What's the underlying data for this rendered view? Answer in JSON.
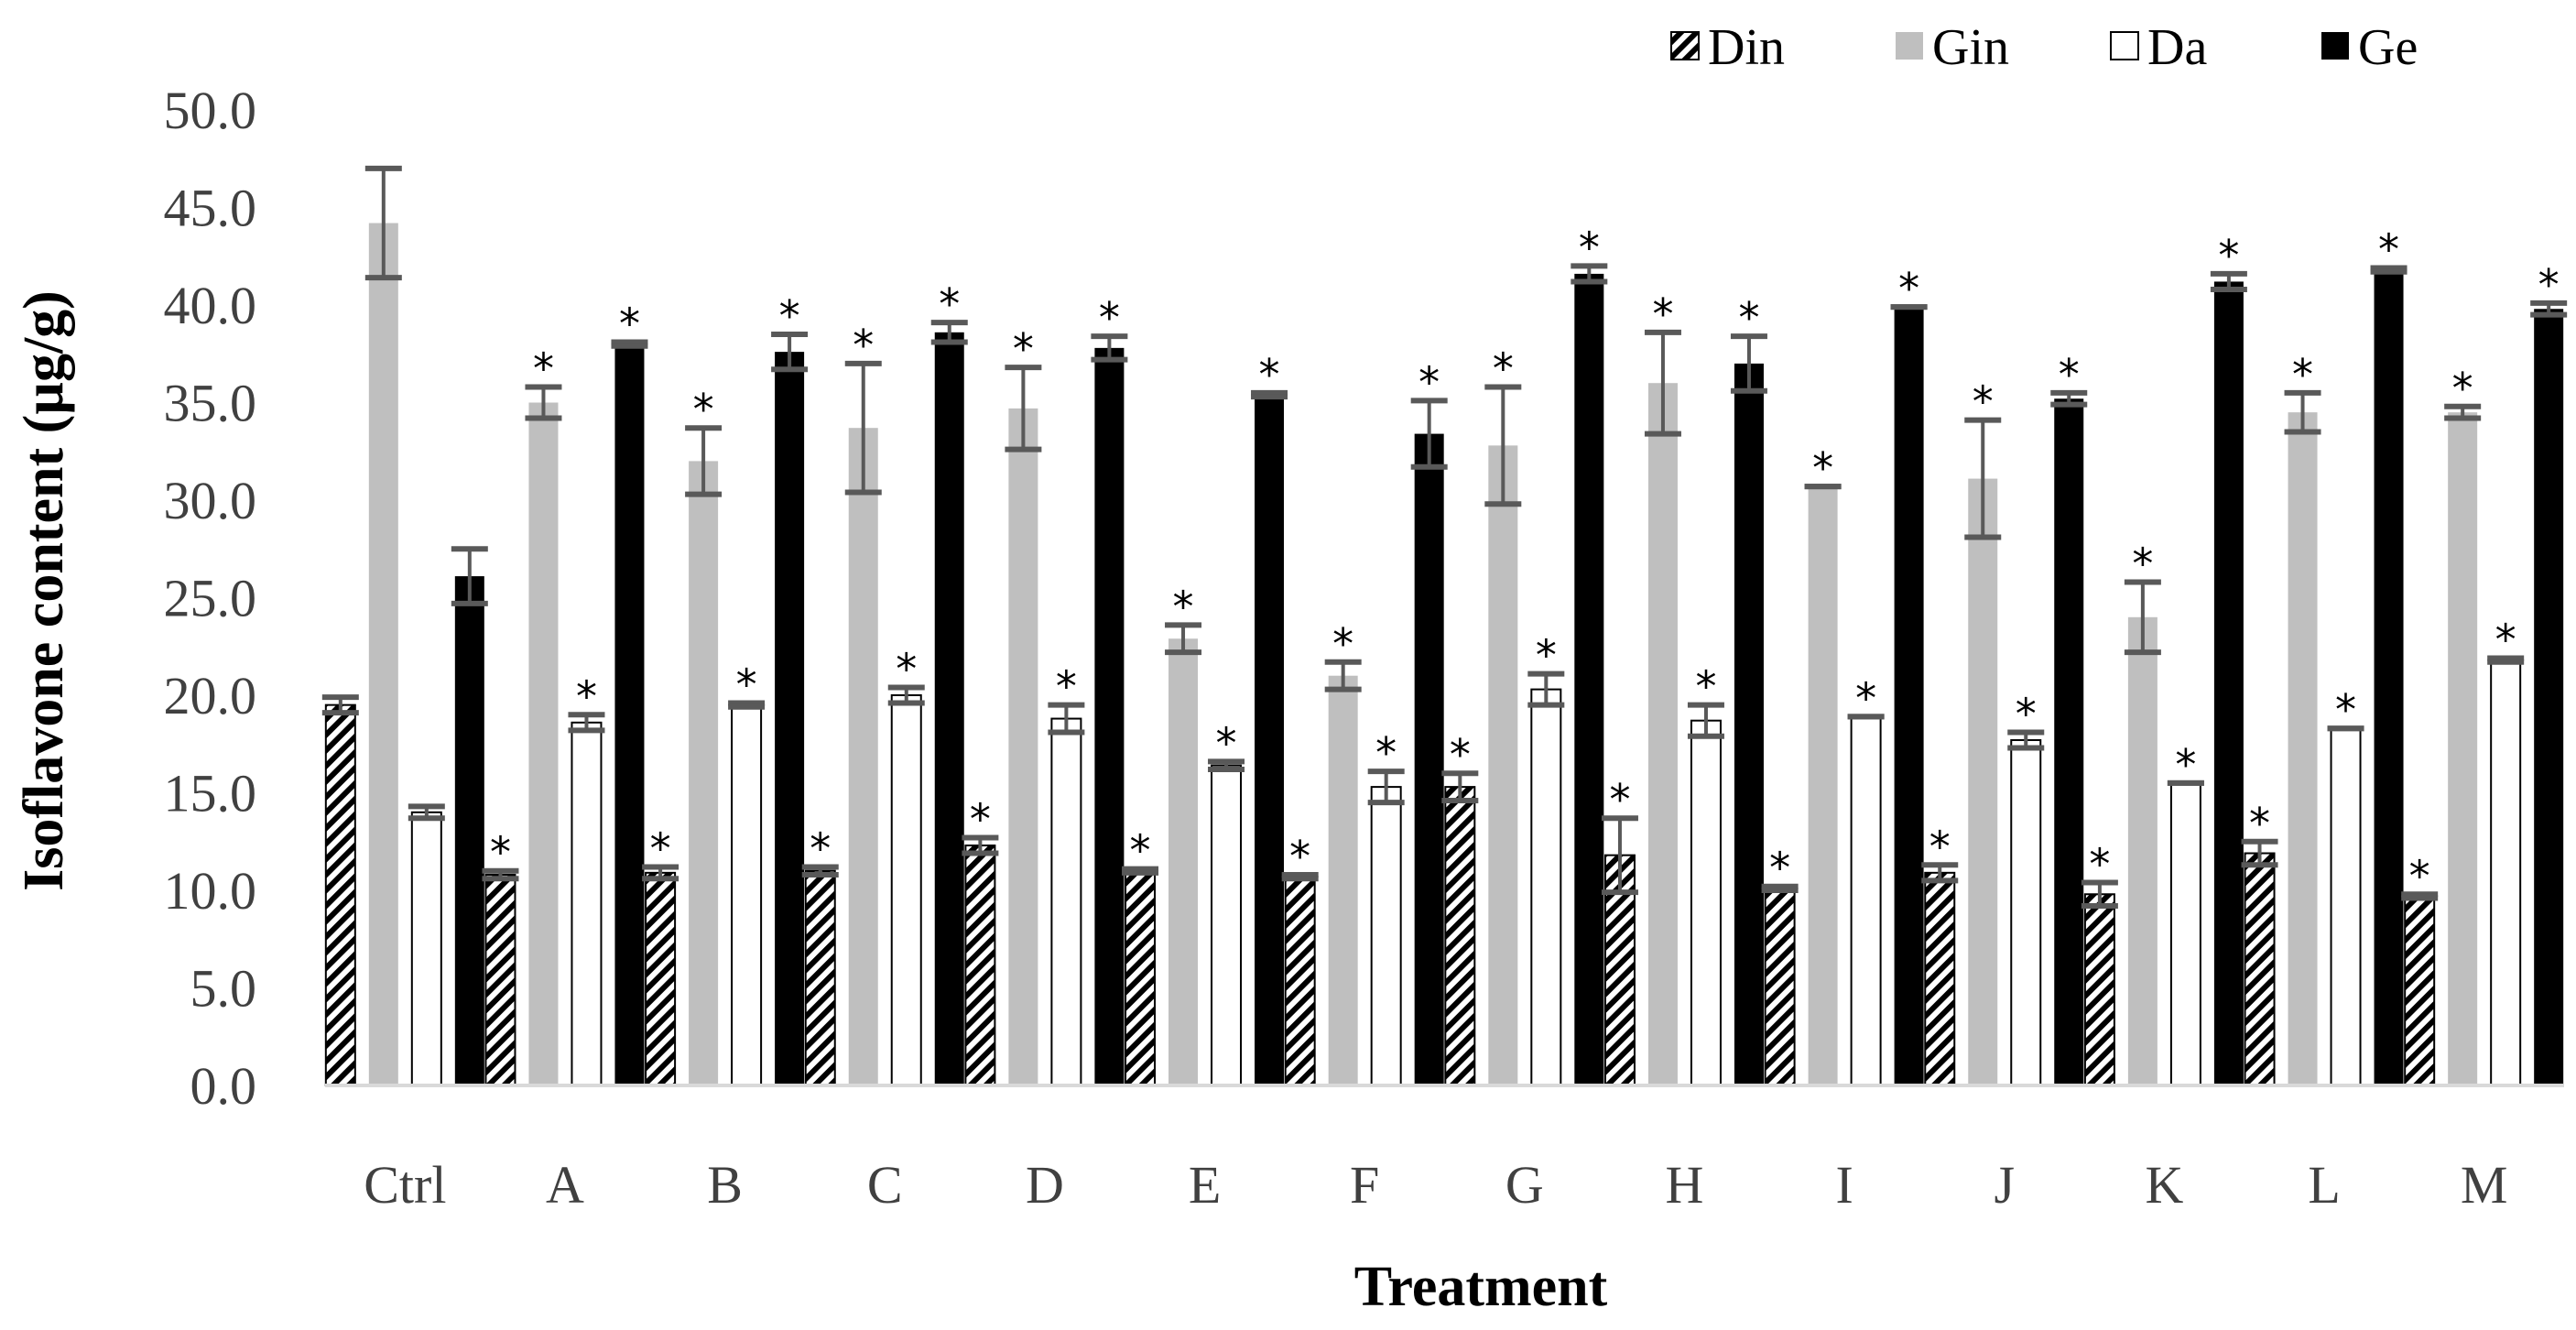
{
  "chart_data": {
    "type": "bar",
    "title": "",
    "xlabel": "Treatment",
    "ylabel": "Isoflavone content (µg/g)",
    "ylim": [
      0,
      50
    ],
    "yticks": [
      "0.0",
      "5.0",
      "10.0",
      "15.0",
      "20.0",
      "25.0",
      "30.0",
      "35.0",
      "40.0",
      "45.0",
      "50.0"
    ],
    "grid": false,
    "legend_position": "top-right",
    "categories": [
      "Ctrl",
      "A",
      "B",
      "C",
      "D",
      "E",
      "F",
      "G",
      "H",
      "I",
      "J",
      "K",
      "L",
      "M"
    ],
    "significance_marker": "*",
    "series": [
      {
        "name": "Din",
        "pattern": "hatched",
        "color": "#000000",
        "values": [
          19.5,
          10.8,
          10.9,
          11.0,
          12.3,
          11.0,
          10.7,
          15.3,
          11.8,
          10.1,
          10.9,
          9.8,
          11.9,
          9.7
        ],
        "errors": [
          0.4,
          0.2,
          0.3,
          0.2,
          0.4,
          0.1,
          0.1,
          0.7,
          1.9,
          0.1,
          0.4,
          0.6,
          0.6,
          0.1
        ],
        "significant": [
          false,
          true,
          true,
          true,
          true,
          true,
          true,
          true,
          true,
          true,
          true,
          true,
          true,
          true
        ]
      },
      {
        "name": "Gin",
        "pattern": "solid",
        "color": "#bfbfbf",
        "values": [
          44.2,
          35.0,
          32.0,
          33.7,
          34.7,
          22.9,
          21.0,
          32.8,
          36.0,
          30.7,
          31.1,
          24.0,
          34.5,
          34.5
        ],
        "errors": [
          2.8,
          0.8,
          1.7,
          3.3,
          2.1,
          0.7,
          0.7,
          3.0,
          2.6,
          0.0,
          3.0,
          1.8,
          1.0,
          0.3
        ],
        "significant": [
          false,
          true,
          true,
          true,
          true,
          true,
          true,
          true,
          true,
          true,
          true,
          true,
          true,
          true
        ]
      },
      {
        "name": "Da",
        "pattern": "solid",
        "color": "#ffffff",
        "values": [
          14.0,
          18.6,
          19.5,
          20.0,
          18.8,
          16.4,
          15.3,
          20.3,
          18.7,
          18.9,
          17.7,
          15.5,
          18.3,
          21.8
        ],
        "errors": [
          0.3,
          0.4,
          0.1,
          0.4,
          0.7,
          0.2,
          0.8,
          0.8,
          0.8,
          0.0,
          0.4,
          0.0,
          0.0,
          0.1
        ],
        "significant": [
          false,
          true,
          true,
          true,
          true,
          true,
          true,
          true,
          true,
          true,
          true,
          true,
          true,
          true
        ]
      },
      {
        "name": "Ge",
        "pattern": "solid",
        "color": "#000000",
        "values": [
          26.1,
          38.0,
          37.6,
          38.6,
          37.8,
          35.4,
          33.4,
          41.6,
          37.0,
          39.9,
          35.2,
          41.2,
          41.8,
          39.8
        ],
        "errors": [
          1.4,
          0.1,
          0.9,
          0.5,
          0.6,
          0.1,
          1.7,
          0.4,
          1.4,
          0.0,
          0.3,
          0.4,
          0.1,
          0.3
        ],
        "significant": [
          false,
          true,
          true,
          true,
          true,
          true,
          true,
          true,
          true,
          true,
          true,
          true,
          true,
          true
        ]
      }
    ]
  }
}
